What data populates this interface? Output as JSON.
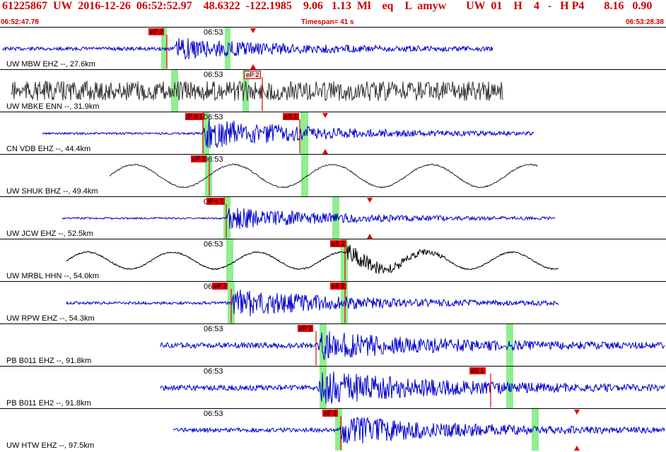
{
  "header": {
    "line1": "61225867  UW  2016-12-26  06:52:52.97    48.6322  -122.1985    9.06   1.13  Ml    eq    L  amyw       UW  01    H    4   -   H P4       8.16   0.90",
    "start_time": "06:52:47.78",
    "timespan": "Timespan=  41 s",
    "end_time": "06:53:28.38"
  },
  "colors": {
    "header_text": "#cc0000",
    "pick": "#e00000",
    "window": "#90ee90"
  },
  "panels": [
    {
      "label": "UW MBW EHZ --, 27.6km",
      "tick": "06:53",
      "color": "#0000cc",
      "picks": [
        {
          "text": "eP 2",
          "pale": false
        }
      ],
      "tri": [
        "down",
        "up"
      ]
    },
    {
      "label": "UW MBKE ENN --, 31.9km",
      "tick": "06:53",
      "color": "#333333",
      "picks": [
        {
          "text": "eP 2",
          "pale": true
        }
      ],
      "tri": []
    },
    {
      "label": "CN VDB EHZ --, 44.4km",
      "tick": "06:53",
      "color": "#0000cc",
      "picks": [
        {
          "text": "iP d 1",
          "pale": false
        },
        {
          "text": "eS 1",
          "pale": false
        }
      ],
      "tri": [
        "down",
        "up"
      ]
    },
    {
      "label": "UW SHUK BHZ --, 49.4km",
      "tick": "06:53",
      "color": "#222244",
      "picks": [
        {
          "text": "eP 2",
          "pale": false
        }
      ],
      "tri": []
    },
    {
      "label": "UW JCW EHZ --, 52.5km",
      "tick": "06:53",
      "color": "#0000cc",
      "picks": [
        {
          "text": "iP c 1",
          "pale": false
        }
      ],
      "tri": [
        "down",
        "up"
      ]
    },
    {
      "label": "UW MRBL HHN --, 54.0km",
      "tick": "06:53",
      "color": "#000000",
      "picks": [
        {
          "text": "eS 2",
          "pale": false
        }
      ],
      "tri": []
    },
    {
      "label": "UW RPW EHZ --, 54.3km",
      "tick": "06:53",
      "color": "#0000cc",
      "picks": [
        {
          "text": "eP 2",
          "pale": false
        },
        {
          "text": "eS 2",
          "pale": false
        }
      ],
      "tri": []
    },
    {
      "label": "PB B011 EHZ --, 91.8km",
      "tick": "06:53",
      "color": "#0000cc",
      "picks": [
        {
          "text": "eP 2",
          "pale": false
        }
      ],
      "tri": []
    },
    {
      "label": "PB B011 EH2 --, 91.8km",
      "tick": "06:53",
      "color": "#0000cc",
      "picks": [
        {
          "text": "eS 1",
          "pale": false
        }
      ],
      "tri": []
    },
    {
      "label": "UW HTW EHZ --, 97.5km",
      "tick": "06:53",
      "color": "#0000cc",
      "picks": [
        {
          "text": "eP 2",
          "pale": false
        }
      ],
      "tri": [
        "down",
        "up"
      ]
    }
  ]
}
